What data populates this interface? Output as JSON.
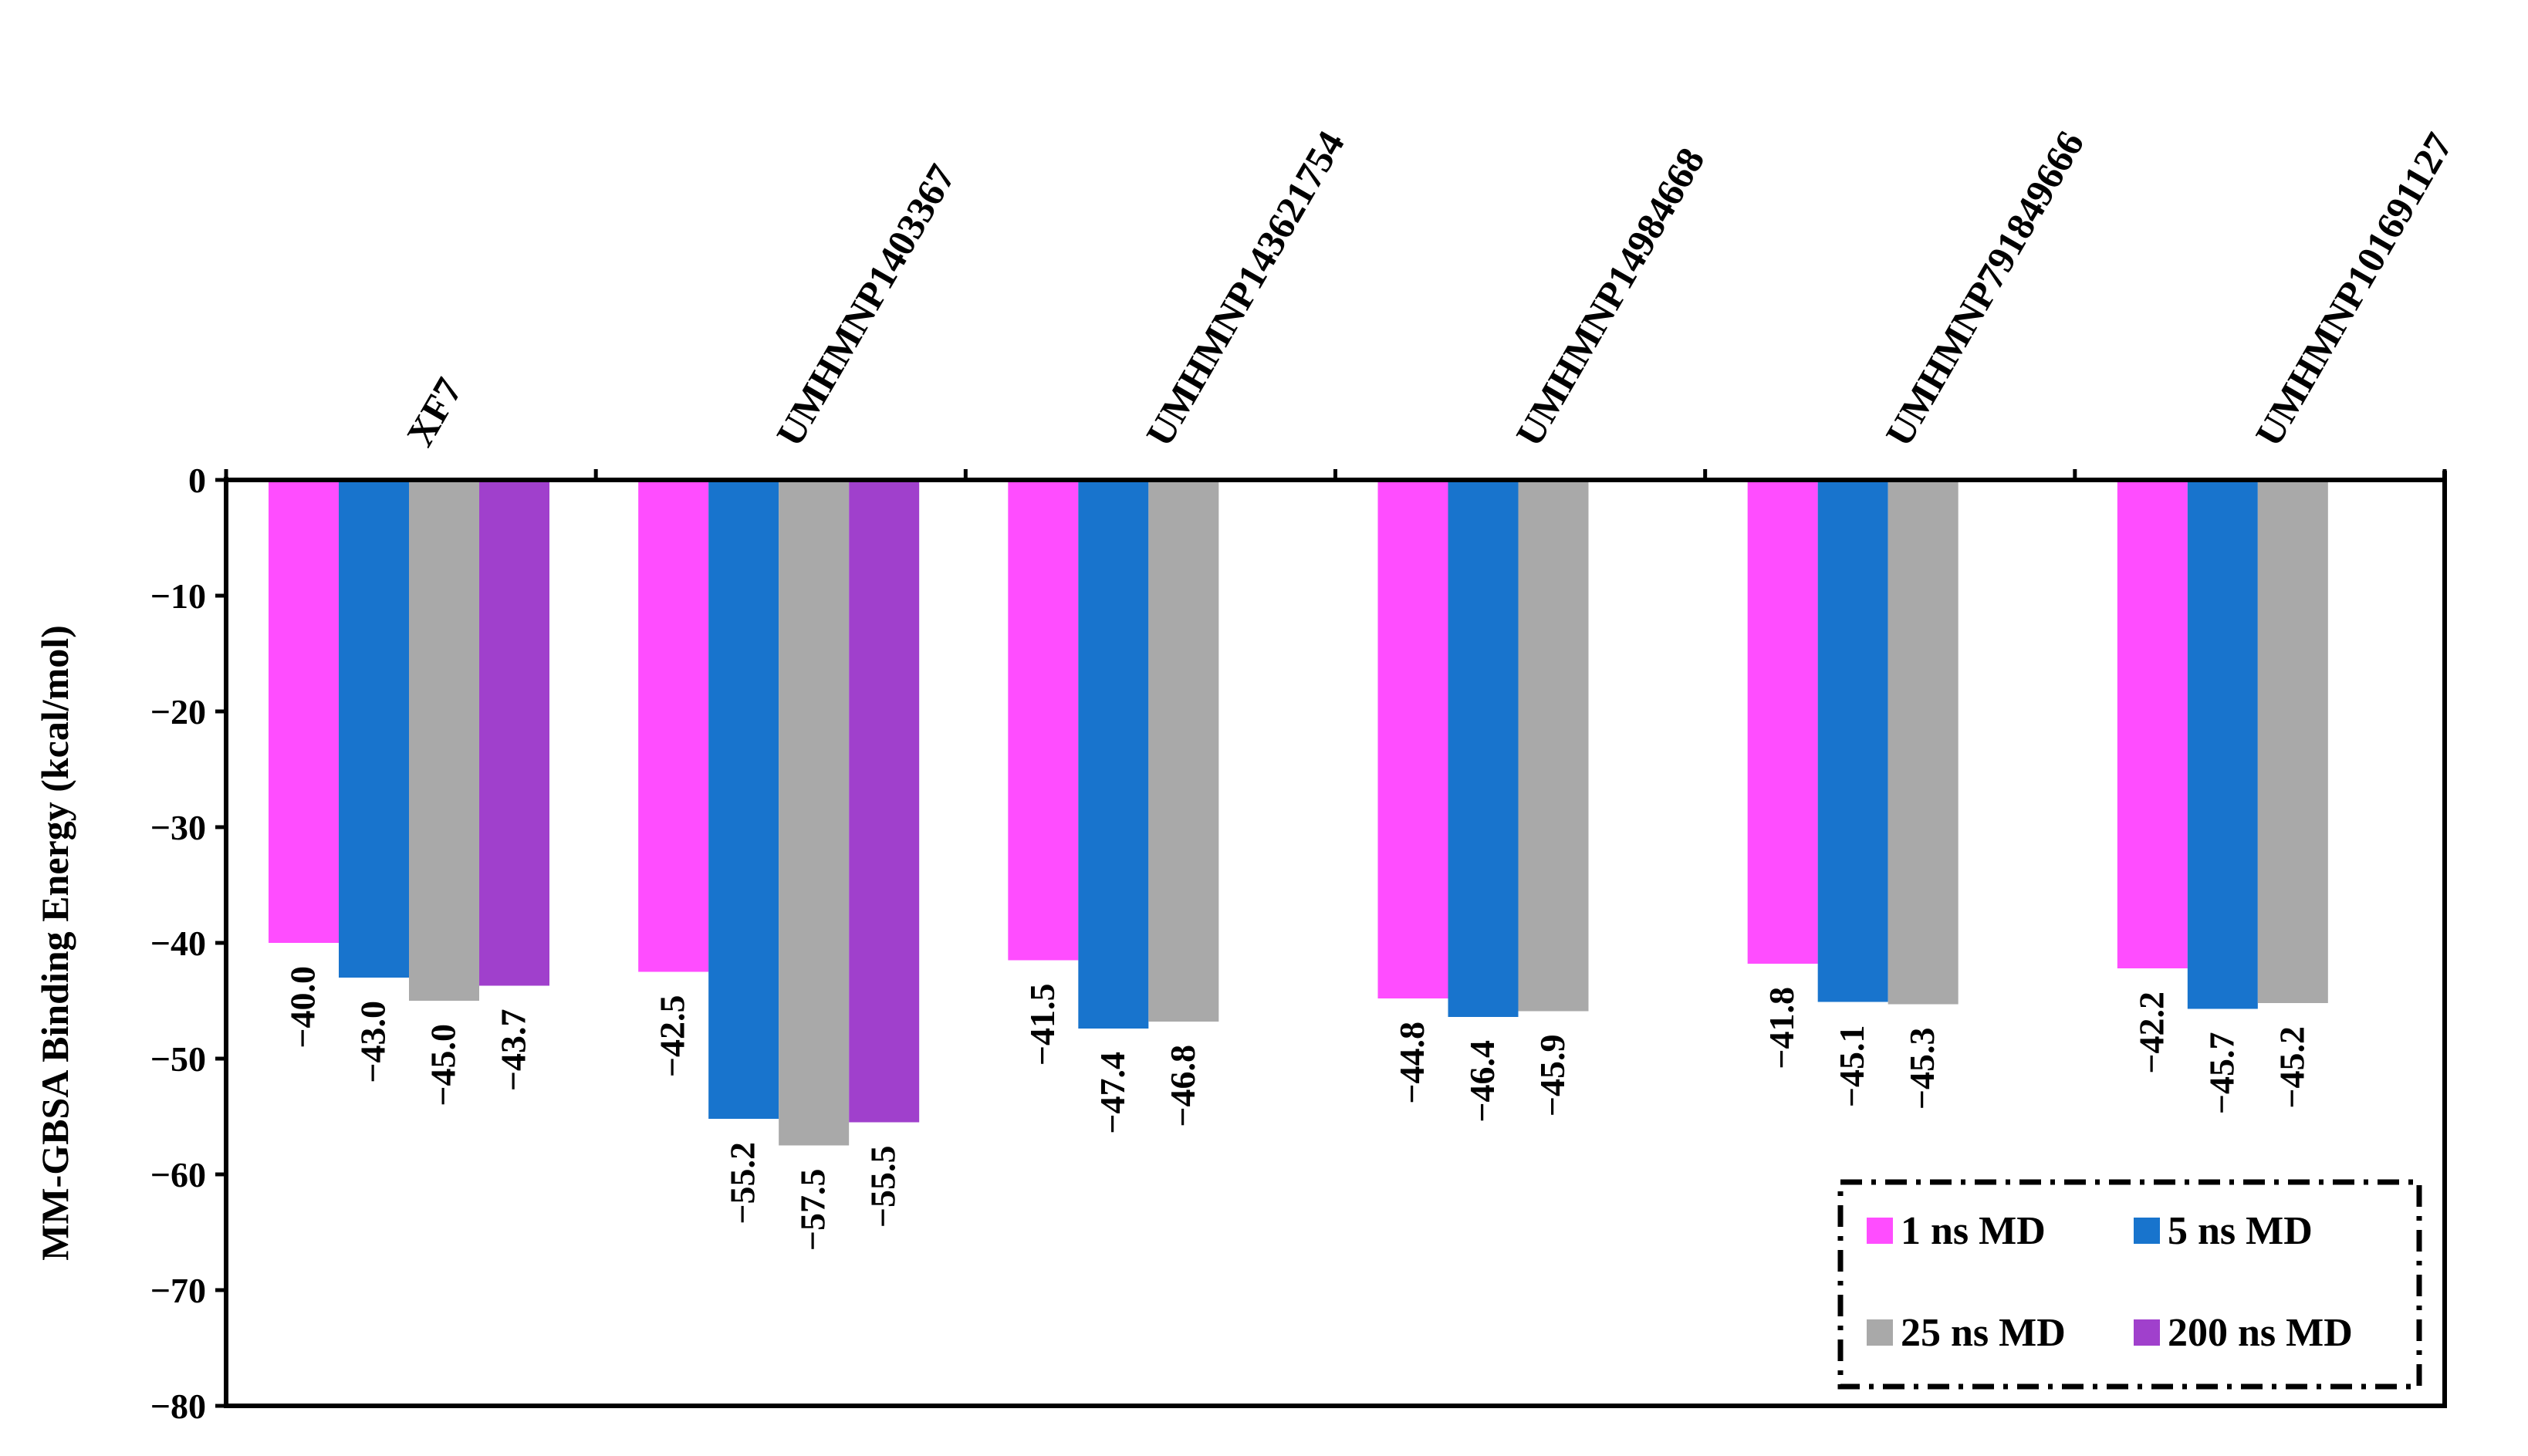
{
  "chart_data": {
    "type": "bar",
    "title": "",
    "xlabel": "",
    "ylabel": "MM-GBSA Binding Energy (kcal/mol)",
    "ylim": [
      -80,
      0
    ],
    "yticks": [
      0,
      -10,
      -20,
      -30,
      -40,
      -50,
      -60,
      -70,
      -80
    ],
    "ytick_labels": [
      "0",
      "−10",
      "−20",
      "−30",
      "−40",
      "−50",
      "−60",
      "−70",
      "−80"
    ],
    "categories": [
      "XF7",
      "UMHMNP1403367",
      "UMHMNP143621754",
      "UMHMNP14984668",
      "UMHMNP791849666",
      "UMHMNP101691127"
    ],
    "legend_position": "bottom-right",
    "series": [
      {
        "name": "1 ns MD",
        "color": "#ff4dff",
        "values": [
          -40.0,
          -42.5,
          -41.5,
          -44.8,
          -41.8,
          -42.2
        ],
        "labels": [
          "−40.0",
          "−42.5",
          "−41.5",
          "−44.8",
          "−41.8",
          "−42.2"
        ]
      },
      {
        "name": "5 ns MD",
        "color": "#1874cd",
        "values": [
          -43.0,
          -55.2,
          -47.4,
          -46.4,
          -45.1,
          -45.7
        ],
        "labels": [
          "−43.0",
          "−55.2",
          "−47.4",
          "−46.4",
          "−45.1",
          "−45.7"
        ]
      },
      {
        "name": "25 ns MD",
        "color": "#a9a9a9",
        "values": [
          -45.0,
          -57.5,
          -46.8,
          -45.9,
          -45.3,
          -45.2
        ],
        "labels": [
          "−45.0",
          "−57.5",
          "−46.8",
          "−45.9",
          "−45.3",
          "−45.2"
        ]
      },
      {
        "name": "200 ns MD",
        "color": "#a040cc",
        "values": [
          -43.7,
          -55.5,
          null,
          null,
          null,
          null
        ],
        "labels": [
          "−43.7",
          "−55.5",
          null,
          null,
          null,
          null
        ]
      }
    ]
  }
}
